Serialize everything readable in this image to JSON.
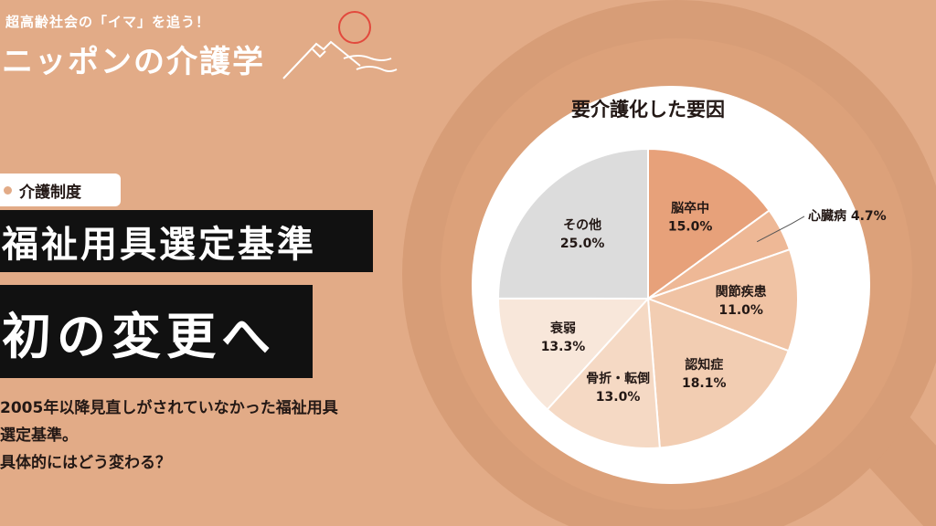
{
  "brand": {
    "tagline": "超高齢社会の「イマ」を追う！",
    "name": "ニッポンの介護学"
  },
  "category": "介護制度",
  "headline": {
    "line1": "福祉用具選定基準",
    "line2": "初の変更へ"
  },
  "description": {
    "line1": "2005年以降見直しがされていなかった福祉用具",
    "line2": "選定基準。",
    "line3": "具体的にはどう変わる？"
  },
  "colors": {
    "background": "#e2ab87",
    "dark": "#111111",
    "white": "#ffffff",
    "logo_red": "#e2493d"
  },
  "chart_data": {
    "type": "pie",
    "title": "要介護化した要因",
    "unit": "%",
    "slices": [
      {
        "label": "脳卒中",
        "value": 15.0,
        "display": "15.0%",
        "color": "#e7a17a",
        "label_placement": "inside"
      },
      {
        "label": "心臓病",
        "value": 4.7,
        "display": "4.7%",
        "color": "#eeb896",
        "label_placement": "outside"
      },
      {
        "label": "関節疾患",
        "value": 11.0,
        "display": "11.0%",
        "color": "#f0c3a4",
        "label_placement": "inside"
      },
      {
        "label": "認知症",
        "value": 18.1,
        "display": "18.1%",
        "color": "#f2cdb2",
        "label_placement": "inside"
      },
      {
        "label": "骨折・転倒",
        "value": 13.0,
        "display": "13.0%",
        "color": "#f5d9c4",
        "label_placement": "inside"
      },
      {
        "label": "衰弱",
        "value": 13.3,
        "display": "13.3%",
        "color": "#f8e7da",
        "label_placement": "inside"
      },
      {
        "label": "その他",
        "value": 25.0,
        "display": "25.0%",
        "color": "#dcdcdc",
        "label_placement": "inside"
      }
    ]
  }
}
